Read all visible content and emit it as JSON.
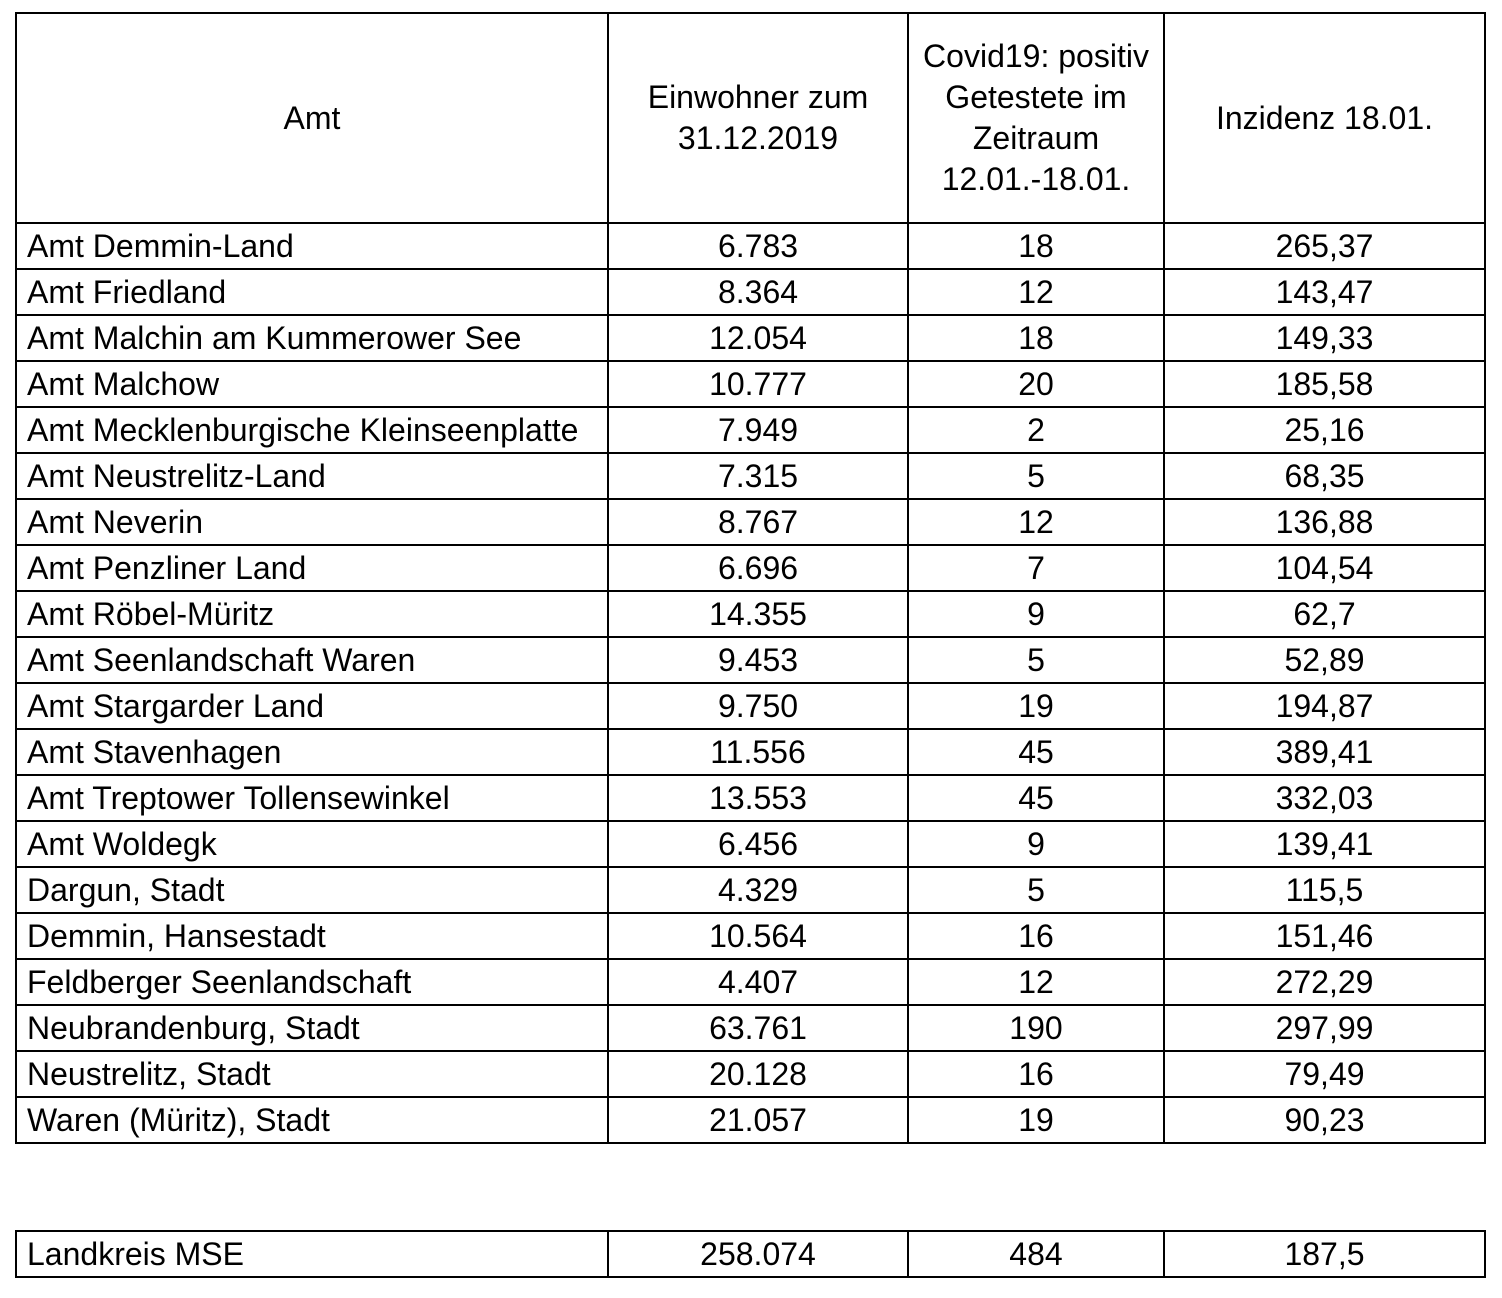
{
  "table": {
    "header": [
      "Amt",
      "Einwohner zum 31.12.2019",
      "Covid19: positiv Getestete im Zeitraum 12.01.-18.01.",
      "Inzidenz 18.01."
    ],
    "rows": [
      [
        "Amt Demmin-Land",
        "6.783",
        "18",
        "265,37"
      ],
      [
        "Amt Friedland",
        "8.364",
        "12",
        "143,47"
      ],
      [
        "Amt Malchin am Kummerower See",
        "12.054",
        "18",
        "149,33"
      ],
      [
        "Amt Malchow",
        "10.777",
        "20",
        "185,58"
      ],
      [
        "Amt Mecklenburgische Kleinseenplatte",
        "7.949",
        "2",
        "25,16"
      ],
      [
        "Amt Neustrelitz-Land",
        "7.315",
        "5",
        "68,35"
      ],
      [
        "Amt Neverin",
        "8.767",
        "12",
        "136,88"
      ],
      [
        "Amt Penzliner Land",
        "6.696",
        "7",
        "104,54"
      ],
      [
        "Amt Röbel-Müritz",
        "14.355",
        "9",
        "62,7"
      ],
      [
        "Amt Seenlandschaft Waren",
        "9.453",
        "5",
        "52,89"
      ],
      [
        "Amt Stargarder Land",
        "9.750",
        "19",
        "194,87"
      ],
      [
        "Amt Stavenhagen",
        "11.556",
        "45",
        "389,41"
      ],
      [
        "Amt Treptower Tollensewinkel",
        "13.553",
        "45",
        "332,03"
      ],
      [
        "Amt Woldegk",
        "6.456",
        "9",
        "139,41"
      ],
      [
        "Dargun, Stadt",
        "4.329",
        "5",
        "115,5"
      ],
      [
        "Demmin, Hansestadt",
        "10.564",
        "16",
        "151,46"
      ],
      [
        "Feldberger Seenlandschaft",
        "4.407",
        "12",
        "272,29"
      ],
      [
        "Neubrandenburg, Stadt",
        "63.761",
        "190",
        "297,99"
      ],
      [
        "Neustrelitz, Stadt",
        "20.128",
        "16",
        "79,49"
      ],
      [
        "Waren (Müritz), Stadt",
        "21.057",
        "19",
        "90,23"
      ]
    ]
  },
  "total": [
    "Landkreis MSE",
    "258.074",
    "484",
    "187,5"
  ]
}
